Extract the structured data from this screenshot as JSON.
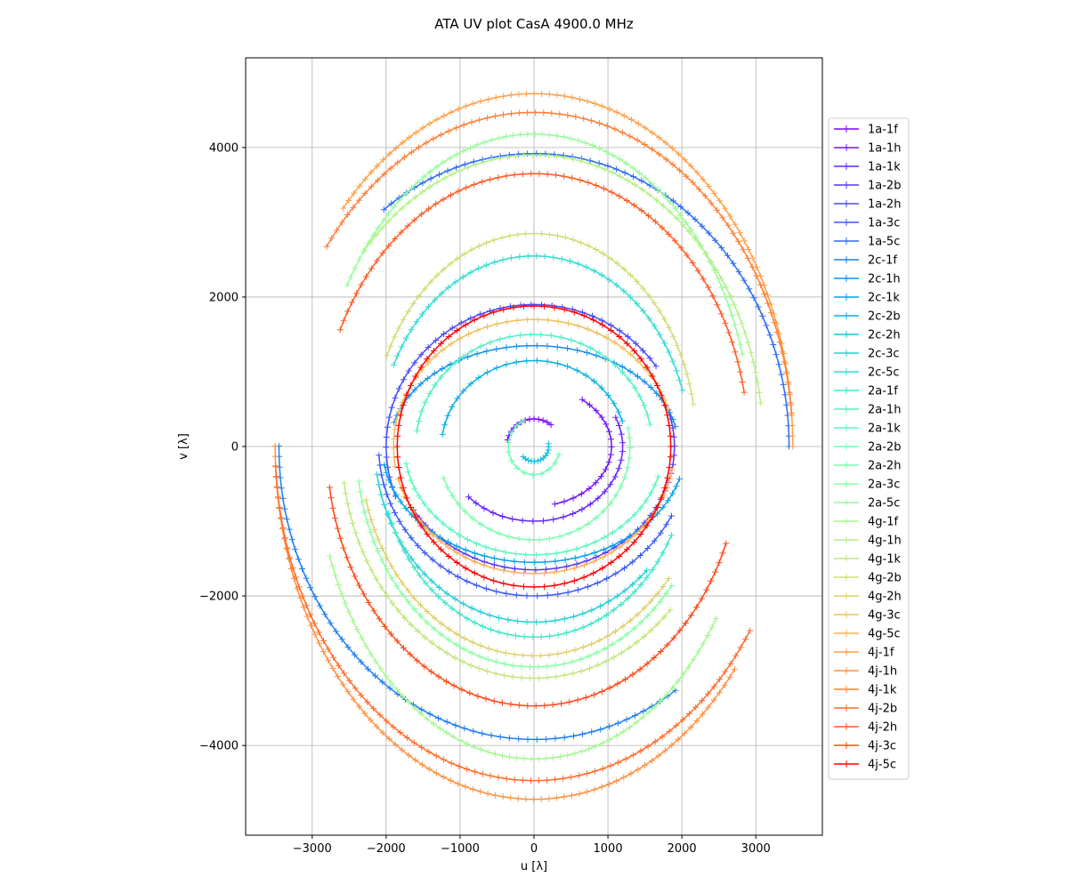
{
  "chart_data": {
    "type": "scatter",
    "title": "ATA UV plot CasA 4900.0 MHz",
    "xlabel": "u [λ]",
    "ylabel": "v [λ]",
    "xlim": [
      -3900,
      3900
    ],
    "ylim": [
      -5200,
      5200
    ],
    "xticks": [
      -3000,
      -2000,
      -1000,
      0,
      1000,
      2000,
      3000
    ],
    "xtick_labels": [
      "−3000",
      "−2000",
      "−1000",
      "0",
      "1000",
      "2000",
      "3000"
    ],
    "yticks": [
      -4000,
      -2000,
      0,
      2000,
      4000
    ],
    "ytick_labels": [
      "−4000",
      "−2000",
      "0",
      "2000",
      "4000"
    ],
    "grid": true,
    "legend_position": "right",
    "marker": "+",
    "colormap": "rainbow",
    "series": [
      {
        "name": "1a-1f",
        "color": "#8000ff",
        "a": 370,
        "b": 370,
        "tilt": 0,
        "u0": 0,
        "v0": 0,
        "t1": 0.9,
        "t2": 2.9
      },
      {
        "name": "1a-1h",
        "color": "#7212ff",
        "a": 1050,
        "b": 800,
        "tilt": 0,
        "u0": 0,
        "v0": 0,
        "t1": -1.3,
        "t2": 0.9
      },
      {
        "name": "1a-1k",
        "color": "#6424fe",
        "a": 1200,
        "b": 1000,
        "tilt": 0,
        "u0": 0,
        "v0": 0,
        "t1": -2.4,
        "t2": 0.4
      },
      {
        "name": "1a-2b",
        "color": "#5636fd",
        "a": 1900,
        "b": 1650,
        "tilt": 0,
        "u0": 0,
        "v0": 0,
        "t1": -2.6,
        "t2": 0.3
      },
      {
        "name": "1a-2h",
        "color": "#4848fb",
        "a": 2000,
        "b": 1900,
        "tilt": 0,
        "u0": 0,
        "v0": 0,
        "t1": 0.6,
        "t2": 3.5
      },
      {
        "name": "1a-3c",
        "color": "#3a5af9",
        "a": 2100,
        "b": 2000,
        "tilt": 0,
        "u0": 0,
        "v0": 0,
        "t1": 3.2,
        "t2": 5.8
      },
      {
        "name": "1a-5c",
        "color": "#2c6cf6",
        "a": 3450,
        "b": 3920,
        "tilt": 0,
        "u0": 0,
        "v0": 0,
        "t1": 0.0,
        "t2": 2.2
      },
      {
        "name": "2c-1f",
        "color": "#1e7ef3",
        "a": 3450,
        "b": 3920,
        "tilt": 0,
        "u0": 0,
        "v0": 0,
        "t1": 3.14,
        "t2": 5.3
      },
      {
        "name": "2c-1h",
        "color": "#1290ef",
        "a": 1950,
        "b": 1350,
        "tilt": 0,
        "u0": 0,
        "v0": 0,
        "t1": 0.2,
        "t2": 2.9
      },
      {
        "name": "2c-1k",
        "color": "#04a0ea",
        "a": 2050,
        "b": 1550,
        "tilt": 0,
        "u0": 0,
        "v0": 0,
        "t1": 3.3,
        "t2": 6.0
      },
      {
        "name": "2c-2b",
        "color": "#08b0e5",
        "a": 1250,
        "b": 1150,
        "tilt": 0,
        "u0": 0,
        "v0": 0,
        "t1": 0.3,
        "t2": 3.0
      },
      {
        "name": "2c-2h",
        "color": "#16c0df",
        "a": 200,
        "b": 200,
        "tilt": 0,
        "u0": 0,
        "v0": 0,
        "t1": -2.4,
        "t2": 0.2
      },
      {
        "name": "2c-3c",
        "color": "#24cfd9",
        "a": 2150,
        "b": 2350,
        "tilt": 0,
        "u0": 0,
        "v0": 0,
        "t1": 3.3,
        "t2": 5.5
      },
      {
        "name": "2c-5c",
        "color": "#32dcd2",
        "a": 2100,
        "b": 2550,
        "tilt": 0,
        "u0": 0,
        "v0": 0,
        "t1": 0.3,
        "t2": 2.7
      },
      {
        "name": "2a-1f",
        "color": "#40e6cb",
        "a": 2100,
        "b": 2550,
        "tilt": 0,
        "u0": 0,
        "v0": 0,
        "t1": 3.5,
        "t2": 5.8
      },
      {
        "name": "2a-1h",
        "color": "#4ef0c4",
        "a": 1600,
        "b": 1500,
        "tilt": 0,
        "u0": 0,
        "v0": 0,
        "t1": 0.2,
        "t2": 3.0
      },
      {
        "name": "2a-1k",
        "color": "#5cf7bd",
        "a": 1750,
        "b": 1450,
        "tilt": 0,
        "u0": 0,
        "v0": 0,
        "t1": 3.3,
        "t2": 6.0
      },
      {
        "name": "2a-2b",
        "color": "#6cfcb5",
        "a": 350,
        "b": 380,
        "tilt": 0,
        "u0": 0,
        "v0": 0,
        "t1": 2.0,
        "t2": 6.0
      },
      {
        "name": "2a-2h",
        "color": "#7afead",
        "a": 1300,
        "b": 1250,
        "tilt": 0,
        "u0": 0,
        "v0": 0,
        "t1": -2.8,
        "t2": 0.2
      },
      {
        "name": "2a-3c",
        "color": "#88ffa4",
        "a": 2400,
        "b": 2950,
        "tilt": 0,
        "u0": 0,
        "v0": 0,
        "t1": 3.3,
        "t2": 5.6
      },
      {
        "name": "2a-5c",
        "color": "#98fc9b",
        "a": 2950,
        "b": 4180,
        "tilt": 0,
        "u0": 0,
        "v0": 0,
        "t1": 0.3,
        "t2": 2.6
      },
      {
        "name": "4g-1f",
        "color": "#a6f792",
        "a": 2950,
        "b": 4180,
        "tilt": 0,
        "u0": 0,
        "v0": 0,
        "t1": 3.5,
        "t2": 5.7
      },
      {
        "name": "4g-1h",
        "color": "#b4f088",
        "a": 3100,
        "b": 3900,
        "tilt": 0,
        "u0": 0,
        "v0": 0,
        "t1": 0.15,
        "t2": 2.4
      },
      {
        "name": "4g-1k",
        "color": "#c2e67e",
        "a": 2600,
        "b": 3100,
        "tilt": 0,
        "u0": 0,
        "v0": 0,
        "t1": 3.3,
        "t2": 5.5
      },
      {
        "name": "4g-2b",
        "color": "#d2dc74",
        "a": 2200,
        "b": 2850,
        "tilt": 0,
        "u0": 0,
        "v0": 0,
        "t1": 0.2,
        "t2": 2.7
      },
      {
        "name": "4g-2h",
        "color": "#e0cf6a",
        "a": 2350,
        "b": 2800,
        "tilt": 0,
        "u0": 0,
        "v0": 0,
        "t1": 3.4,
        "t2": 5.6
      },
      {
        "name": "4g-3c",
        "color": "#eec05f",
        "a": 1900,
        "b": 1700,
        "tilt": 0,
        "u0": 0,
        "v0": 0,
        "t1": 0.3,
        "t2": 3.3
      },
      {
        "name": "4g-5c",
        "color": "#ffb055",
        "a": 1900,
        "b": 1700,
        "tilt": 0,
        "u0": 0,
        "v0": 0,
        "t1": 3.4,
        "t2": 6.1
      },
      {
        "name": "4j-1f",
        "color": "#ffa04a",
        "a": 3500,
        "b": 4720,
        "tilt": 0,
        "u0": 0,
        "v0": 0,
        "t1": 0.0,
        "t2": 2.4
      },
      {
        "name": "4j-1h",
        "color": "#ff9040",
        "a": 3500,
        "b": 4720,
        "tilt": 0,
        "u0": 0,
        "v0": 0,
        "t1": 3.14,
        "t2": 5.6
      },
      {
        "name": "4j-1k",
        "color": "#ff7e35",
        "a": 3500,
        "b": 4470,
        "tilt": 0,
        "u0": 0,
        "v0": 0,
        "t1": 0.1,
        "t2": 2.5
      },
      {
        "name": "4j-2b",
        "color": "#ff6c2a",
        "a": 3500,
        "b": 4470,
        "tilt": 0,
        "u0": 0,
        "v0": 0,
        "t1": 3.2,
        "t2": 5.7
      },
      {
        "name": "4j-2h",
        "color": "#ff5a20",
        "a": 2900,
        "b": 3650,
        "tilt": 0,
        "u0": 0,
        "v0": 0,
        "t1": 0.2,
        "t2": 2.7
      },
      {
        "name": "4j-3c",
        "color": "#ff4816",
        "a": 2800,
        "b": 3470,
        "tilt": 0,
        "u0": 0,
        "v0": 0,
        "t1": 3.3,
        "t2": 5.9
      },
      {
        "name": "4j-5c",
        "color": "#ff0000",
        "a": 1850,
        "b": 1880,
        "tilt": 0,
        "u0": 0,
        "v0": 0,
        "t1": 0,
        "t2": 6.283
      }
    ]
  }
}
